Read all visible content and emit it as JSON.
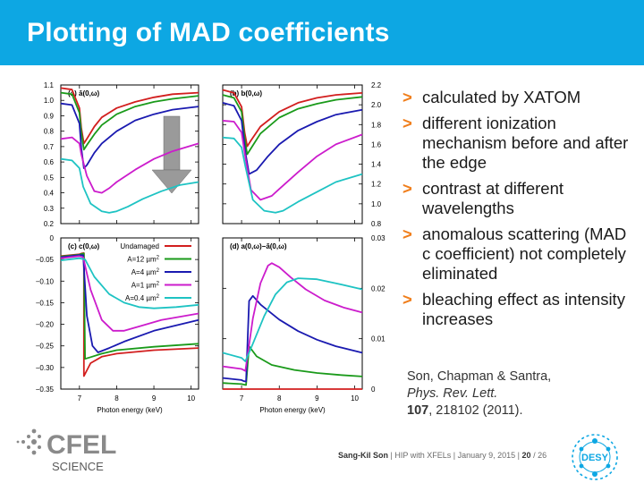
{
  "slide": {
    "title": "Plotting of MAD coefficients",
    "bullets": [
      "calculated by XATOM",
      "different ionization mechanism before and after the edge",
      "contrast at different wavelengths",
      "anomalous scattering (MAD c coefficient) not completely eliminated",
      "bleaching effect as intensity increases"
    ],
    "bullet_marker": ">",
    "reference": {
      "authors": "Son, Chapman & Santra,",
      "journal": "Phys. Rev. Lett.",
      "volume": "107",
      "rest": ", 218102 (2011)."
    },
    "footer": {
      "author": "Sang-Kil Son",
      "sep1": "|",
      "talk": "HIP with XFELs",
      "sep2": "|",
      "date": "January 9, 2015",
      "sep3": "|",
      "page": "20",
      "total": "/ 26"
    },
    "logo_left": {
      "line1": "CFEL",
      "line2": "SCIENCE"
    },
    "logo_right": "DESY",
    "colors": {
      "title_bar": "#0da7e3",
      "bullet_marker": "#f07e1b",
      "undamaged": "#d21e1e",
      "a12": "#1a9a1a",
      "a4": "#1a1ab0",
      "a1": "#cc1ccc",
      "a04": "#1ec3c3"
    }
  },
  "chart_data": [
    {
      "type": "line",
      "panel_label": "(a) ā(0,ω)",
      "xlim": [
        6.5,
        10.2
      ],
      "ylim": [
        0.2,
        1.1
      ],
      "y_ticks": [
        0.2,
        0.3,
        0.4,
        0.5,
        0.6,
        0.7,
        0.8,
        0.9,
        1.0,
        1.1
      ],
      "y_tick_labels": [
        "0.2",
        "0.3",
        "0.4",
        "0.5",
        "0.6",
        "0.7",
        "0.8",
        "0.9",
        "1.0",
        "1.1"
      ],
      "x_ticks": [
        7,
        8,
        9,
        10
      ],
      "y_axis_side": "left",
      "annotation": "grey downward arrow: bleaching with increasing intensity",
      "series": [
        {
          "key": "undamaged",
          "x": [
            6.5,
            6.8,
            7.0,
            7.05,
            7.12,
            7.2,
            7.4,
            7.6,
            8.0,
            8.5,
            9.0,
            9.5,
            10.2
          ],
          "y": [
            1.08,
            1.07,
            0.95,
            0.82,
            0.72,
            0.75,
            0.83,
            0.89,
            0.95,
            0.99,
            1.02,
            1.04,
            1.05
          ]
        },
        {
          "key": "a12",
          "x": [
            6.5,
            6.8,
            7.0,
            7.05,
            7.12,
            7.2,
            7.4,
            7.6,
            8.0,
            8.5,
            9.0,
            9.5,
            10.2
          ],
          "y": [
            1.05,
            1.04,
            0.92,
            0.79,
            0.68,
            0.71,
            0.78,
            0.84,
            0.91,
            0.96,
            0.99,
            1.01,
            1.03
          ]
        },
        {
          "key": "a4",
          "x": [
            6.5,
            6.8,
            7.0,
            7.05,
            7.12,
            7.2,
            7.4,
            7.6,
            8.0,
            8.5,
            9.0,
            9.5,
            10.2
          ],
          "y": [
            0.98,
            0.97,
            0.85,
            0.69,
            0.56,
            0.58,
            0.66,
            0.72,
            0.8,
            0.87,
            0.91,
            0.94,
            0.96
          ]
        },
        {
          "key": "a1",
          "x": [
            6.5,
            6.8,
            7.0,
            7.05,
            7.2,
            7.4,
            7.6,
            7.8,
            8.0,
            8.5,
            9.0,
            9.5,
            10.2
          ],
          "y": [
            0.75,
            0.76,
            0.72,
            0.65,
            0.51,
            0.41,
            0.4,
            0.43,
            0.47,
            0.55,
            0.62,
            0.67,
            0.72
          ]
        },
        {
          "key": "a04",
          "x": [
            6.5,
            6.8,
            7.0,
            7.1,
            7.3,
            7.6,
            7.8,
            8.0,
            8.3,
            8.7,
            9.2,
            9.7,
            10.2
          ],
          "y": [
            0.62,
            0.61,
            0.56,
            0.44,
            0.33,
            0.28,
            0.27,
            0.28,
            0.31,
            0.36,
            0.41,
            0.45,
            0.47
          ]
        }
      ]
    },
    {
      "type": "line",
      "panel_label": "(b) b(0,ω)",
      "xlim": [
        6.5,
        10.2
      ],
      "ylim": [
        0.8,
        2.2
      ],
      "y_ticks": [
        0.8,
        1.0,
        1.2,
        1.4,
        1.6,
        1.8,
        2.0,
        2.2
      ],
      "y_tick_labels": [
        "0.8",
        "1.0",
        "1.2",
        "1.4",
        "1.6",
        "1.8",
        "2.0",
        "2.2"
      ],
      "x_ticks": [
        7,
        8,
        9,
        10
      ],
      "y_axis_side": "right",
      "series": [
        {
          "key": "undamaged",
          "x": [
            6.5,
            6.8,
            7.0,
            7.08,
            7.15,
            7.25,
            7.5,
            8.0,
            8.5,
            9.0,
            9.5,
            10.2
          ],
          "y": [
            2.15,
            2.12,
            1.98,
            1.72,
            1.58,
            1.64,
            1.78,
            1.93,
            2.02,
            2.07,
            2.1,
            2.12
          ]
        },
        {
          "key": "a12",
          "x": [
            6.5,
            6.8,
            7.0,
            7.08,
            7.15,
            7.25,
            7.5,
            8.0,
            8.5,
            9.0,
            9.5,
            10.2
          ],
          "y": [
            2.1,
            2.07,
            1.93,
            1.66,
            1.5,
            1.56,
            1.71,
            1.87,
            1.96,
            2.01,
            2.05,
            2.08
          ]
        },
        {
          "key": "a4",
          "x": [
            6.5,
            6.8,
            7.0,
            7.1,
            7.2,
            7.4,
            7.7,
            8.0,
            8.5,
            9.0,
            9.5,
            10.2
          ],
          "y": [
            2.02,
            1.99,
            1.84,
            1.52,
            1.3,
            1.34,
            1.48,
            1.6,
            1.74,
            1.83,
            1.9,
            1.95
          ]
        },
        {
          "key": "a1",
          "x": [
            6.5,
            6.8,
            7.0,
            7.1,
            7.25,
            7.5,
            7.8,
            8.0,
            8.5,
            9.0,
            9.5,
            10.2
          ],
          "y": [
            1.84,
            1.83,
            1.72,
            1.47,
            1.14,
            1.04,
            1.08,
            1.15,
            1.32,
            1.48,
            1.6,
            1.7
          ]
        },
        {
          "key": "a04",
          "x": [
            6.5,
            6.8,
            7.0,
            7.1,
            7.3,
            7.6,
            7.9,
            8.1,
            8.5,
            9.0,
            9.5,
            10.2
          ],
          "y": [
            1.67,
            1.66,
            1.57,
            1.38,
            1.04,
            0.93,
            0.91,
            0.93,
            1.02,
            1.12,
            1.22,
            1.3
          ]
        }
      ]
    },
    {
      "type": "line",
      "panel_label": "(c) c(0,ω)",
      "xlim": [
        6.5,
        10.2
      ],
      "ylim": [
        -0.35,
        0
      ],
      "y_ticks": [
        -0.35,
        -0.3,
        -0.25,
        -0.2,
        -0.15,
        -0.1,
        -0.05,
        0
      ],
      "y_tick_labels": [
        "−0.35",
        "−0.30",
        "−0.25",
        "−0.20",
        "−0.15",
        "−0.10",
        "−0.05",
        "0"
      ],
      "x_ticks": [
        7,
        8,
        9,
        10
      ],
      "x_tick_labels": [
        "7",
        "8",
        "9",
        "10"
      ],
      "xlabel": "Photon energy (keV)",
      "y_axis_side": "left",
      "legend": {
        "position": "top-right",
        "entries": [
          {
            "key": "undamaged",
            "label": "Undamaged"
          },
          {
            "key": "a12",
            "label": "A=12 µm",
            "sup": "2"
          },
          {
            "key": "a4",
            "label": "A=4 µm",
            "sup": "2"
          },
          {
            "key": "a1",
            "label": "A=1 µm",
            "sup": "2"
          },
          {
            "key": "a04",
            "label": "A=0.4 µm",
            "sup": "2"
          }
        ]
      },
      "series": [
        {
          "key": "undamaged",
          "x": [
            6.5,
            7.0,
            7.05,
            7.12,
            7.12,
            7.3,
            7.6,
            8.0,
            9.0,
            10.2
          ],
          "y": [
            -0.042,
            -0.038,
            -0.036,
            -0.035,
            -0.32,
            -0.29,
            -0.275,
            -0.268,
            -0.26,
            -0.255
          ]
        },
        {
          "key": "a12",
          "x": [
            6.5,
            7.0,
            7.05,
            7.12,
            7.15,
            7.3,
            7.6,
            8.0,
            9.0,
            10.2
          ],
          "y": [
            -0.043,
            -0.039,
            -0.037,
            -0.036,
            -0.28,
            -0.276,
            -0.268,
            -0.26,
            -0.252,
            -0.245
          ]
        },
        {
          "key": "a4",
          "x": [
            6.5,
            7.0,
            7.1,
            7.2,
            7.35,
            7.5,
            7.8,
            8.2,
            9.0,
            10.2
          ],
          "y": [
            -0.045,
            -0.04,
            -0.04,
            -0.18,
            -0.25,
            -0.265,
            -0.255,
            -0.24,
            -0.215,
            -0.19
          ]
        },
        {
          "key": "a1",
          "x": [
            6.5,
            7.0,
            7.1,
            7.3,
            7.6,
            7.9,
            8.2,
            8.6,
            9.2,
            10.2
          ],
          "y": [
            -0.047,
            -0.042,
            -0.045,
            -0.12,
            -0.19,
            -0.215,
            -0.215,
            -0.205,
            -0.19,
            -0.175
          ]
        },
        {
          "key": "a04",
          "x": [
            6.5,
            7.0,
            7.15,
            7.4,
            7.8,
            8.2,
            8.6,
            9.0,
            9.6,
            10.2
          ],
          "y": [
            -0.052,
            -0.047,
            -0.05,
            -0.09,
            -0.13,
            -0.15,
            -0.16,
            -0.163,
            -0.16,
            -0.155
          ]
        }
      ]
    },
    {
      "type": "line",
      "panel_label": "(d) a(0,ω)−ā(0,ω)",
      "xlim": [
        6.5,
        10.2
      ],
      "ylim": [
        0,
        0.03
      ],
      "y_ticks": [
        0,
        0.01,
        0.02,
        0.03
      ],
      "y_tick_labels": [
        "0",
        "0.01",
        "0.02",
        "0.03"
      ],
      "x_ticks": [
        7,
        8,
        9,
        10
      ],
      "x_tick_labels": [
        "7",
        "8",
        "9",
        "10"
      ],
      "xlabel": "Photon energy (keV)",
      "y_axis_side": "right",
      "series": [
        {
          "key": "undamaged",
          "x": [
            6.5,
            10.2
          ],
          "y": [
            0,
            0
          ]
        },
        {
          "key": "a12",
          "x": [
            6.5,
            7.0,
            7.05,
            7.12,
            7.2,
            7.4,
            7.8,
            8.4,
            9.0,
            9.6,
            10.2
          ],
          "y": [
            0.0012,
            0.001,
            0.0009,
            0.0008,
            0.0085,
            0.0065,
            0.0048,
            0.0038,
            0.0032,
            0.0028,
            0.0025
          ]
        },
        {
          "key": "a4",
          "x": [
            6.5,
            7.0,
            7.05,
            7.12,
            7.2,
            7.3,
            7.5,
            8.0,
            8.5,
            9.0,
            9.5,
            10.2
          ],
          "y": [
            0.0022,
            0.0018,
            0.0016,
            0.0015,
            0.0175,
            0.0185,
            0.0168,
            0.0138,
            0.0115,
            0.0098,
            0.0085,
            0.0072
          ]
        },
        {
          "key": "a1",
          "x": [
            6.5,
            7.0,
            7.1,
            7.3,
            7.5,
            7.7,
            7.8,
            8.0,
            8.3,
            8.7,
            9.2,
            9.7,
            10.2
          ],
          "y": [
            0.0045,
            0.004,
            0.0036,
            0.014,
            0.021,
            0.0245,
            0.025,
            0.0242,
            0.0222,
            0.0198,
            0.0176,
            0.0162,
            0.0152
          ]
        },
        {
          "key": "a04",
          "x": [
            6.5,
            7.0,
            7.1,
            7.3,
            7.6,
            7.9,
            8.2,
            8.5,
            9.0,
            9.5,
            10.2
          ],
          "y": [
            0.0072,
            0.0062,
            0.0055,
            0.009,
            0.0145,
            0.0188,
            0.0212,
            0.022,
            0.0218,
            0.021,
            0.0198
          ]
        }
      ]
    }
  ]
}
